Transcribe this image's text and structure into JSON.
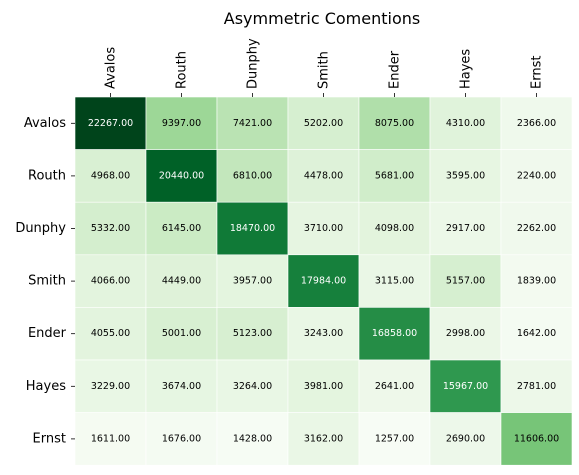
{
  "chart_data": {
    "type": "heatmap",
    "title": "Asymmetric Comentions",
    "row_labels": [
      "Avalos",
      "Routh",
      "Dunphy",
      "Smith",
      "Ender",
      "Hayes",
      "Ernst"
    ],
    "col_labels": [
      "Avalos",
      "Routh",
      "Dunphy",
      "Smith",
      "Ender",
      "Hayes",
      "Ernst"
    ],
    "values": [
      [
        22267,
        9397,
        7421,
        5202,
        8075,
        4310,
        2366
      ],
      [
        4968,
        20440,
        6810,
        4478,
        5681,
        3595,
        2240
      ],
      [
        5332,
        6145,
        18470,
        3710,
        4098,
        2917,
        2262
      ],
      [
        4066,
        4449,
        3957,
        17984,
        3115,
        5157,
        1839
      ],
      [
        4055,
        5001,
        5123,
        3243,
        16858,
        2998,
        1642
      ],
      [
        3229,
        3674,
        3264,
        3981,
        2641,
        15967,
        2781
      ],
      [
        1611,
        1676,
        1428,
        3162,
        1257,
        2690,
        11606
      ]
    ],
    "value_format_decimals": 2,
    "colormap": "Greens",
    "colorbar": false,
    "x_tick_position": "top",
    "grid": false
  }
}
